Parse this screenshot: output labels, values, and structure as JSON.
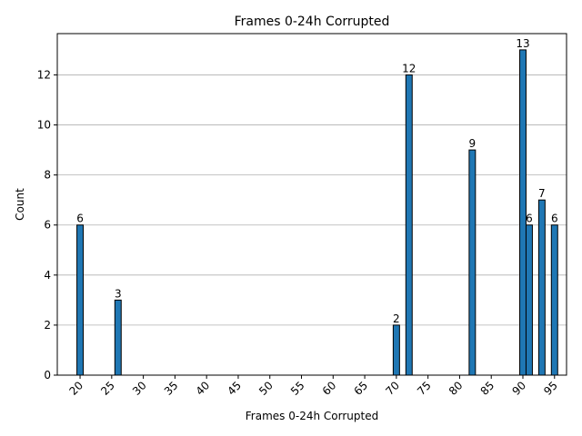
{
  "chart_data": {
    "type": "bar",
    "title": "Frames 0-24h Corrupted",
    "xlabel": "Frames 0-24h Corrupted",
    "ylabel": "Count",
    "x": [
      20,
      26,
      70,
      72,
      82,
      90,
      91,
      93,
      95
    ],
    "values": [
      6,
      3,
      2,
      12,
      9,
      13,
      6,
      7,
      6
    ],
    "bar_width": 1,
    "xlim": [
      16.4,
      96.9
    ],
    "ylim": [
      0,
      13.65
    ],
    "xticks": [
      20,
      25,
      30,
      35,
      40,
      45,
      50,
      55,
      60,
      65,
      70,
      75,
      80,
      85,
      90,
      95
    ],
    "xtick_labels": [
      "20",
      "25",
      "30",
      "35",
      "40",
      "45",
      "50",
      "55",
      "60",
      "65",
      "70",
      "75",
      "80",
      "85",
      "90",
      "95"
    ],
    "yticks": [
      0,
      2,
      4,
      6,
      8,
      10,
      12
    ],
    "ytick_labels": [
      "0",
      "2",
      "4",
      "6",
      "8",
      "10",
      "12"
    ],
    "data_labels": [
      "6",
      "3",
      "2",
      "12",
      "9",
      "13",
      "6",
      "7",
      "6"
    ],
    "grid": "y",
    "bar_color": "#1f77b4",
    "edge_color": "#000000",
    "grid_color": "#b0b0b0"
  }
}
